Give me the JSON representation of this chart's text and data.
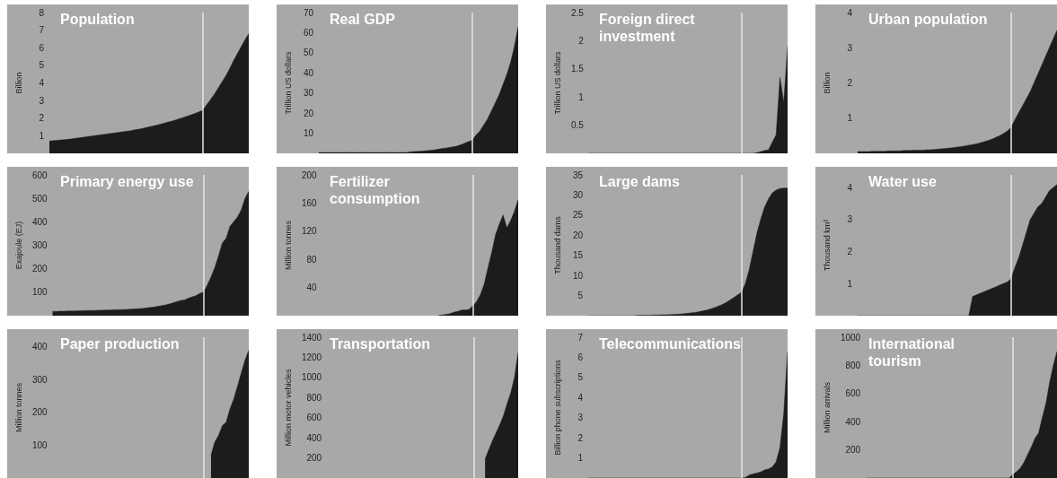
{
  "chart_data": [
    {
      "type": "area",
      "title": "Population",
      "ylabel": "Billion",
      "color": "#1c1c1c",
      "ylim": [
        0,
        8
      ],
      "yticks": [
        1,
        2,
        3,
        4,
        5,
        6,
        7,
        8
      ],
      "tick_labels": "y",
      "categories": [
        null,
        null,
        null,
        null,
        null,
        null,
        null,
        null,
        null,
        null,
        null,
        null,
        null,
        null,
        null,
        null,
        null,
        null,
        null,
        null,
        null,
        null,
        null,
        null,
        null,
        null,
        null,
        null,
        null,
        null,
        null,
        null,
        null,
        null,
        null,
        null,
        null,
        null,
        null,
        null,
        null,
        null,
        null,
        null,
        null,
        null,
        null,
        null,
        null,
        null,
        null,
        null,
        null
      ],
      "values": [
        0.7,
        0.72,
        0.74,
        0.76,
        0.78,
        0.8,
        0.83,
        0.86,
        0.89,
        0.92,
        0.95,
        0.98,
        1.01,
        1.04,
        1.07,
        1.1,
        1.13,
        1.16,
        1.19,
        1.22,
        1.25,
        1.28,
        1.32,
        1.36,
        1.4,
        1.45,
        1.5,
        1.55,
        1.6,
        1.66,
        1.72,
        1.78,
        1.84,
        1.9,
        1.97,
        2.04,
        2.11,
        2.19,
        2.27,
        2.36,
        2.45,
        2.75,
        3.05,
        3.35,
        3.7,
        4.05,
        4.4,
        4.8,
        5.25,
        5.65,
        6.05,
        6.45,
        6.8
      ]
    },
    {
      "type": "area",
      "title": "Real GDP",
      "ylabel": "Trillion US dollars",
      "color": "#1c1c1c",
      "ylim": [
        0,
        70
      ],
      "yticks": [
        10,
        20,
        30,
        40,
        50,
        60,
        70
      ],
      "tick_labels": "y",
      "categories": [
        null,
        null,
        null,
        null,
        null,
        null,
        null,
        null,
        null,
        null,
        null,
        null,
        null,
        null,
        null,
        null,
        null,
        null,
        null,
        null,
        null,
        null,
        null,
        null,
        null,
        null,
        null,
        null,
        null,
        null,
        null,
        null,
        null,
        null,
        null,
        null,
        null,
        null,
        null,
        null,
        null,
        null,
        null,
        null,
        null,
        null,
        null,
        null,
        null,
        null,
        null,
        null,
        null
      ],
      "values": [
        0.4,
        0.4,
        0.4,
        0.4,
        0.4,
        0.4,
        0.4,
        0.4,
        0.4,
        0.4,
        0.4,
        0.4,
        0.4,
        0.4,
        0.4,
        0.4,
        0.4,
        0.4,
        0.4,
        0.4,
        0.4,
        0.4,
        0.4,
        0.4,
        0.8,
        0.9,
        1.0,
        1.1,
        1.3,
        1.5,
        1.7,
        2.0,
        2.3,
        2.6,
        2.9,
        3.2,
        3.6,
        4.2,
        5.0,
        5.8,
        6.5,
        9,
        11,
        14,
        17,
        21,
        25,
        29,
        34,
        39,
        45,
        53,
        63
      ]
    },
    {
      "type": "area",
      "title": "Foreign direct investment",
      "ylabel": "Trillion US dollars",
      "color": "#1c1c1c",
      "ylim": [
        0,
        2.5
      ],
      "yticks": [
        0.5,
        1,
        1.5,
        2,
        2.5
      ],
      "tick_labels": "y",
      "categories": [
        null,
        null,
        null,
        null,
        null,
        null,
        null,
        null,
        null,
        null,
        null,
        null,
        null,
        null,
        null,
        null,
        null,
        null,
        null,
        null,
        null,
        null,
        null,
        null,
        null,
        null,
        null,
        null,
        null,
        null,
        null,
        null,
        null,
        null,
        null,
        null,
        null,
        null,
        null,
        null,
        null,
        null,
        null,
        null,
        null,
        null,
        null,
        null,
        null,
        null,
        null,
        null,
        null
      ],
      "values": [
        0,
        0,
        0,
        0,
        0,
        0,
        0,
        0,
        0,
        0,
        0,
        0,
        0,
        0,
        0,
        0,
        0,
        0,
        0,
        0,
        0,
        0,
        0,
        0,
        0,
        0,
        0,
        0,
        0,
        0,
        0,
        0,
        0,
        0,
        0,
        0,
        0,
        0,
        0,
        0,
        0,
        0,
        0,
        0,
        0.01,
        0.03,
        0.05,
        0.06,
        0.2,
        0.33,
        1.35,
        0.9,
        1.9
      ]
    },
    {
      "type": "area",
      "title": "Urban population",
      "ylabel": "Billion",
      "color": "#1c1c1c",
      "ylim": [
        0,
        4
      ],
      "yticks": [
        1,
        2,
        3,
        4
      ],
      "tick_labels": "y",
      "categories": [
        null,
        null,
        null,
        null,
        null,
        null,
        null,
        null,
        null,
        null,
        null,
        null,
        null,
        null,
        null,
        null,
        null,
        null,
        null,
        null,
        null,
        null,
        null,
        null,
        null,
        null,
        null,
        null,
        null,
        null,
        null,
        null,
        null,
        null,
        null,
        null,
        null,
        null,
        null,
        null,
        null,
        null,
        null,
        null,
        null,
        null,
        null,
        null,
        null,
        null,
        null,
        null,
        null
      ],
      "values": [
        0.05,
        0.05,
        0.05,
        0.05,
        0.06,
        0.06,
        0.06,
        0.06,
        0.07,
        0.07,
        0.07,
        0.07,
        0.08,
        0.08,
        0.08,
        0.09,
        0.09,
        0.09,
        0.1,
        0.1,
        0.11,
        0.12,
        0.13,
        0.14,
        0.15,
        0.16,
        0.18,
        0.19,
        0.21,
        0.23,
        0.25,
        0.27,
        0.3,
        0.33,
        0.36,
        0.4,
        0.45,
        0.5,
        0.56,
        0.63,
        0.73,
        0.95,
        1.15,
        1.35,
        1.55,
        1.75,
        2.0,
        2.25,
        2.5,
        2.75,
        3.0,
        3.25,
        3.5
      ]
    },
    {
      "type": "area",
      "title": "Primary energy use",
      "ylabel": "Exajoule (EJ)",
      "color": "#1c1c1c",
      "ylim": [
        0,
        600
      ],
      "yticks": [
        100,
        200,
        300,
        400,
        500,
        600
      ],
      "tick_labels": "y",
      "categories": [
        null,
        null,
        null,
        null,
        null,
        null,
        null,
        null,
        null,
        null,
        null,
        null,
        null,
        null,
        null,
        null,
        null,
        null,
        null,
        null,
        null,
        null,
        null,
        null,
        null,
        null,
        null,
        null,
        null,
        null,
        null,
        null,
        null,
        null,
        null,
        null,
        null,
        null,
        null,
        null,
        null,
        null,
        null,
        null,
        null,
        null,
        null,
        null,
        null,
        null,
        null,
        null,
        null
      ],
      "values": [
        18,
        18,
        19,
        19,
        20,
        20,
        20,
        21,
        21,
        22,
        22,
        22,
        23,
        23,
        24,
        24,
        25,
        25,
        26,
        26,
        27,
        28,
        29,
        30,
        31,
        33,
        35,
        37,
        40,
        43,
        46,
        50,
        55,
        60,
        65,
        67,
        75,
        80,
        85,
        95,
        100,
        130,
        165,
        205,
        255,
        310,
        330,
        380,
        400,
        420,
        450,
        500,
        530
      ]
    },
    {
      "type": "area",
      "title": "Fertilizer consumption",
      "ylabel": "Million tonnes",
      "color": "#1c1c1c",
      "ylim": [
        0,
        200
      ],
      "yticks": [
        40,
        80,
        120,
        160,
        200
      ],
      "tick_labels": "y",
      "categories": [
        null,
        null,
        null,
        null,
        null,
        null,
        null,
        null,
        null,
        null,
        null,
        null,
        null,
        null,
        null,
        null,
        null,
        null,
        null,
        null,
        null,
        null,
        null,
        null,
        null,
        null,
        null,
        null,
        null,
        null,
        null,
        null,
        null,
        null,
        null,
        null,
        null,
        null,
        null,
        null,
        null,
        null,
        null,
        null,
        null,
        null,
        null,
        null,
        null,
        null,
        null,
        null,
        null
      ],
      "values": [
        null,
        null,
        null,
        null,
        null,
        null,
        null,
        null,
        null,
        null,
        null,
        null,
        null,
        null,
        null,
        null,
        null,
        null,
        null,
        null,
        null,
        null,
        null,
        null,
        null,
        null,
        null,
        null,
        null,
        null,
        null,
        0.5,
        1,
        2,
        3,
        5,
        6,
        8,
        8,
        9,
        14,
        20,
        30,
        45,
        68,
        90,
        115,
        130,
        143,
        125,
        135,
        148,
        165
      ]
    },
    {
      "type": "area",
      "title": "Large dams",
      "ylabel": "Thousand dams",
      "color": "#1c1c1c",
      "ylim": [
        0,
        35
      ],
      "yticks": [
        5,
        10,
        15,
        20,
        25,
        30,
        35
      ],
      "tick_labels": "y",
      "categories": [
        null,
        null,
        null,
        null,
        null,
        null,
        null,
        null,
        null,
        null,
        null,
        null,
        null,
        null,
        null,
        null,
        null,
        null,
        null,
        null,
        null,
        null,
        null,
        null,
        null,
        null,
        null,
        null,
        null,
        null,
        null,
        null,
        null,
        null,
        null,
        null,
        null,
        null,
        null,
        null,
        null,
        null,
        null,
        null,
        null,
        null,
        null,
        null,
        null,
        null,
        null,
        null,
        null
      ],
      "values": [
        0,
        0,
        0,
        0,
        0,
        0,
        0,
        0,
        0,
        0,
        0,
        0,
        0,
        0.1,
        0.1,
        0.1,
        0.1,
        0.15,
        0.15,
        0.2,
        0.2,
        0.25,
        0.3,
        0.35,
        0.4,
        0.5,
        0.6,
        0.7,
        0.8,
        1.0,
        1.2,
        1.4,
        1.7,
        2.0,
        2.4,
        2.8,
        3.3,
        3.9,
        4.5,
        5.2,
        5.8,
        8,
        11.5,
        16,
        20.5,
        24,
        27,
        29,
        30.5,
        31.2,
        31.6,
        31.7,
        31.7
      ]
    },
    {
      "type": "area",
      "title": "Water use",
      "ylabel": "Thousand km³",
      "color": "#1c1c1c",
      "ylim": [
        0,
        4.4
      ],
      "yticks": [
        1,
        2,
        3,
        4
      ],
      "tick_labels": "y",
      "categories": [
        null,
        null,
        null,
        null,
        null,
        null,
        null,
        null,
        null,
        null,
        null,
        null,
        null,
        null,
        null,
        null,
        null,
        null,
        null,
        null,
        null,
        null,
        null,
        null,
        null,
        null,
        null,
        null,
        null,
        null,
        null,
        null,
        null,
        null,
        null,
        null,
        null,
        null,
        null,
        null,
        null,
        null,
        null,
        null,
        null,
        null,
        null,
        null,
        null,
        null,
        null,
        null,
        null
      ],
      "values": [
        0,
        0,
        0,
        0,
        0,
        0,
        0,
        0,
        0,
        0,
        0,
        0,
        0,
        0,
        0,
        0,
        0,
        0,
        0,
        0,
        0,
        0,
        0,
        0,
        0,
        0,
        0,
        0,
        0,
        0,
        0.6,
        0.65,
        0.7,
        0.75,
        0.8,
        0.85,
        0.9,
        0.95,
        1.0,
        1.05,
        1.15,
        1.5,
        1.8,
        2.2,
        2.6,
        3.0,
        3.2,
        3.4,
        3.5,
        3.7,
        3.9,
        4.0,
        4.1
      ]
    },
    {
      "type": "area",
      "title": "Paper production",
      "ylabel": "Million tonnes",
      "color": "#1c1c1c",
      "ylim": [
        0,
        430
      ],
      "yticks": [
        100,
        200,
        300,
        400
      ],
      "tick_labels": "y",
      "categories": [
        null,
        null,
        null,
        null,
        null,
        null,
        null,
        null,
        null,
        null,
        null,
        null,
        null,
        null,
        null,
        null,
        null,
        null,
        null,
        null,
        null,
        null,
        null,
        null,
        null,
        null,
        null,
        null,
        null,
        null,
        null,
        null,
        null,
        null,
        null,
        null,
        null,
        null,
        null,
        null,
        null,
        null,
        null,
        null,
        null,
        null,
        null,
        null,
        null,
        null,
        null,
        null,
        null
      ],
      "values": [
        null,
        null,
        null,
        null,
        null,
        null,
        null,
        null,
        null,
        null,
        null,
        null,
        null,
        null,
        null,
        null,
        null,
        null,
        null,
        null,
        null,
        null,
        null,
        null,
        null,
        null,
        null,
        null,
        null,
        null,
        null,
        null,
        null,
        null,
        null,
        null,
        null,
        null,
        null,
        null,
        null,
        null,
        70,
        110,
        130,
        160,
        170,
        210,
        240,
        280,
        320,
        360,
        390
      ]
    },
    {
      "type": "area",
      "title": "Transportation",
      "ylabel": "Million motor vehicles",
      "color": "#1c1c1c",
      "ylim": [
        0,
        1400
      ],
      "yticks": [
        200,
        400,
        600,
        800,
        1000,
        1200,
        1400
      ],
      "tick_labels": "y",
      "categories": [
        null,
        null,
        null,
        null,
        null,
        null,
        null,
        null,
        null,
        null,
        null,
        null,
        null,
        null,
        null,
        null,
        null,
        null,
        null,
        null,
        null,
        null,
        null,
        null,
        null,
        null,
        null,
        null,
        null,
        null,
        null,
        null,
        null,
        null,
        null,
        null,
        null,
        null,
        null,
        null,
        null,
        null,
        null,
        null,
        null,
        null,
        null,
        null,
        null,
        null,
        null,
        null,
        null
      ],
      "values": [
        null,
        null,
        null,
        null,
        null,
        null,
        null,
        null,
        null,
        null,
        null,
        null,
        null,
        null,
        null,
        null,
        null,
        null,
        null,
        null,
        null,
        null,
        null,
        null,
        null,
        null,
        null,
        null,
        null,
        null,
        null,
        null,
        null,
        null,
        null,
        null,
        null,
        null,
        null,
        null,
        null,
        null,
        null,
        190,
        280,
        370,
        450,
        530,
        620,
        740,
        850,
        1000,
        1250
      ]
    },
    {
      "type": "area",
      "title": "Telecommunications",
      "ylabel": "Billion phone subscriptions",
      "color": "#1c1c1c",
      "ylim": [
        0,
        7
      ],
      "yticks": [
        1,
        2,
        3,
        4,
        5,
        6,
        7
      ],
      "tick_labels": "y",
      "categories": [
        null,
        null,
        null,
        null,
        null,
        null,
        null,
        null,
        null,
        null,
        null,
        null,
        null,
        null,
        null,
        null,
        null,
        null,
        null,
        null,
        null,
        null,
        null,
        null,
        null,
        null,
        null,
        null,
        null,
        null,
        null,
        null,
        null,
        null,
        null,
        null,
        null,
        null,
        null,
        null,
        null,
        null,
        null,
        null,
        null,
        null,
        null,
        null,
        null,
        null,
        null,
        null,
        null
      ],
      "values": [
        0,
        0,
        0,
        0,
        0,
        0,
        0,
        0,
        0,
        0,
        0,
        0,
        0,
        0,
        0,
        0,
        0,
        0,
        0,
        0,
        0,
        0,
        0,
        0,
        0,
        0,
        0,
        0,
        0,
        0,
        0,
        0,
        0,
        0,
        0,
        0,
        0,
        0,
        0,
        0,
        0,
        0.02,
        0.15,
        0.2,
        0.25,
        0.3,
        0.4,
        0.45,
        0.55,
        0.8,
        1.5,
        3.2,
        6.3
      ]
    },
    {
      "type": "area",
      "title": "International tourism",
      "ylabel": "Million arrivals",
      "color": "#1c1c1c",
      "ylim": [
        0,
        1000
      ],
      "yticks": [
        200,
        400,
        600,
        800,
        1000
      ],
      "tick_labels": "y",
      "categories": [
        null,
        null,
        null,
        null,
        null,
        null,
        null,
        null,
        null,
        null,
        null,
        null,
        null,
        null,
        null,
        null,
        null,
        null,
        null,
        null,
        null,
        null,
        null,
        null,
        null,
        null,
        null,
        null,
        null,
        null,
        null,
        null,
        null,
        null,
        null,
        null,
        null,
        null,
        null,
        null,
        null,
        null,
        null,
        null,
        null,
        null,
        null,
        null,
        null,
        null,
        null,
        null,
        null
      ],
      "values": [
        0,
        0,
        0,
        0,
        0,
        0,
        0,
        0,
        0,
        0,
        0,
        0,
        0,
        0,
        0,
        0,
        0,
        0,
        0,
        0,
        0,
        0,
        0,
        0,
        0,
        0,
        0,
        0,
        0,
        0,
        0,
        0,
        0,
        0,
        0,
        0,
        0,
        0,
        0,
        0,
        25,
        45,
        70,
        110,
        165,
        220,
        280,
        320,
        430,
        530,
        680,
        800,
        900
      ]
    }
  ]
}
